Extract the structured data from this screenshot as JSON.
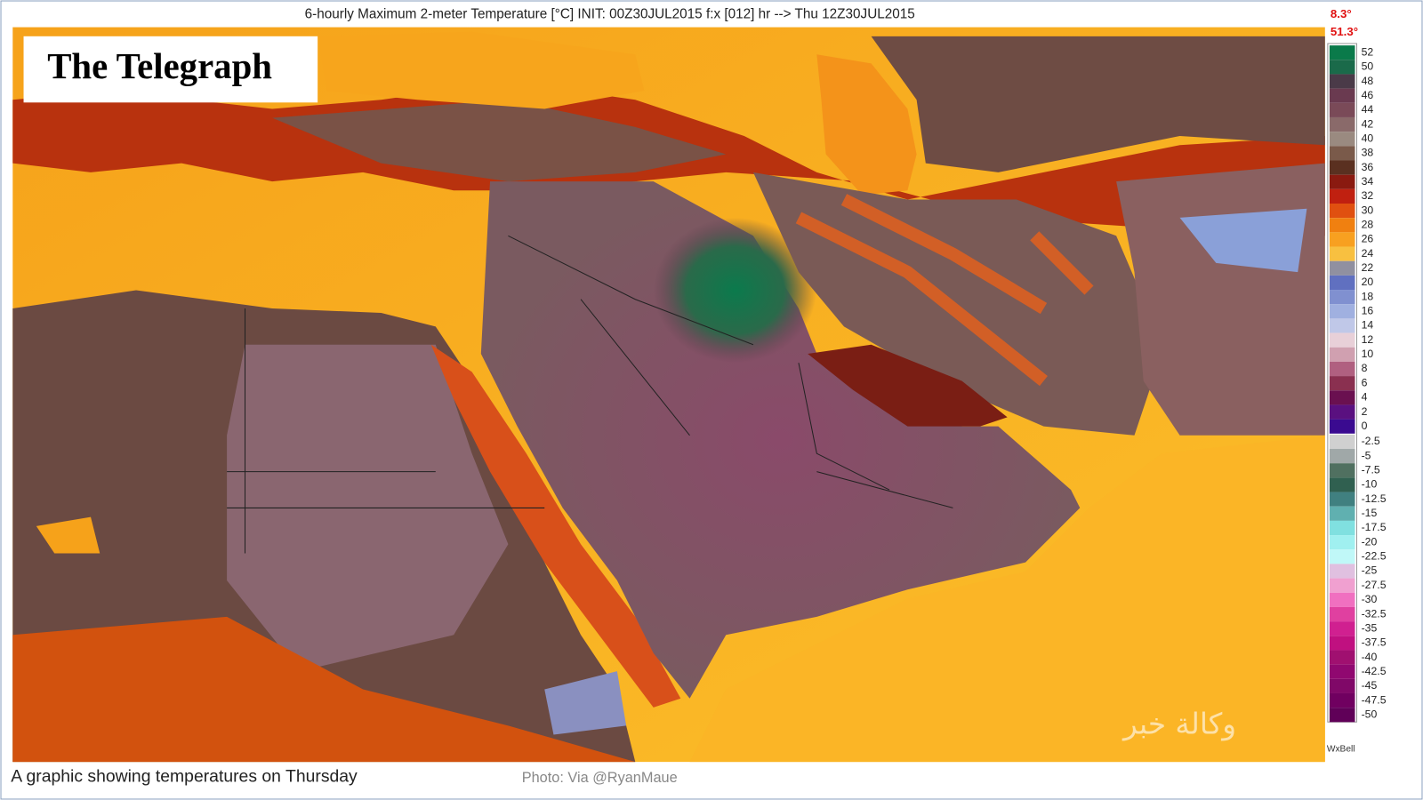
{
  "header": {
    "title": "6-hourly Maximum 2-meter Temperature [°C] INIT: 00Z30JUL2015 f:x [012] hr --> Thu 12Z30JUL2015"
  },
  "range": {
    "min": "8.3°",
    "max": "51.3°"
  },
  "logo": "The Telegraph",
  "colorbar": {
    "above_zero": [
      "52",
      "50",
      "48",
      "46",
      "44",
      "42",
      "40",
      "38",
      "36",
      "34",
      "32",
      "30",
      "28",
      "26",
      "24",
      "22",
      "20",
      "18",
      "16",
      "14",
      "12",
      "10",
      "8",
      "6",
      "4",
      "2",
      "0"
    ],
    "below_zero": [
      "-2.5",
      "-5",
      "-7.5",
      "-10",
      "-12.5",
      "-15",
      "-17.5",
      "-20",
      "-22.5",
      "-25",
      "-27.5",
      "-30",
      "-32.5",
      "-35",
      "-37.5",
      "-40",
      "-42.5",
      "-45",
      "-47.5",
      "-50"
    ],
    "credit": "WxBell"
  },
  "caption": {
    "text": "A graphic showing temperatures on Thursday",
    "credit": "Photo: Via @RyanMaue"
  },
  "watermark": "وكالة خبر"
}
